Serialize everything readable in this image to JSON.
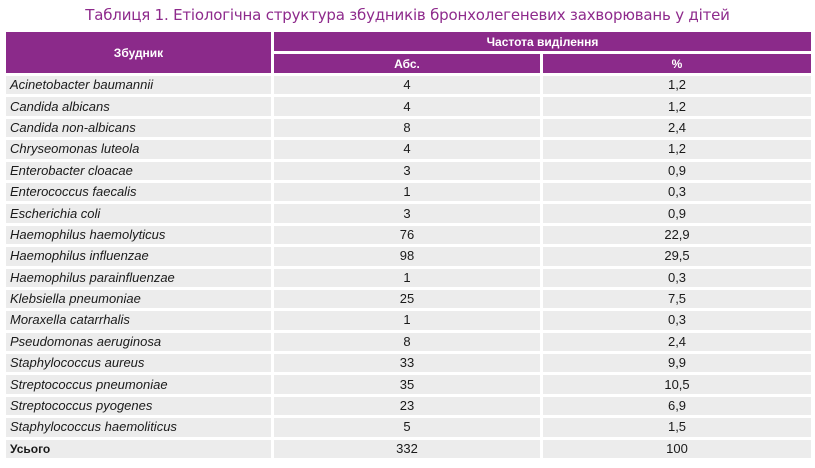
{
  "caption": "Таблиця 1. Етіологічна структура збудників бронхолегеневих захворювань у дітей",
  "headers": {
    "pathogen": "Збудник",
    "frequency": "Частота виділення",
    "abs": "Абс.",
    "percent": "%"
  },
  "rows": [
    {
      "name": "Acinetobacter baumannii",
      "abs": "4",
      "pct": "1,2"
    },
    {
      "name": "Candida albicans",
      "abs": "4",
      "pct": "1,2"
    },
    {
      "name": "Candida non-albicans",
      "abs": "8",
      "pct": "2,4"
    },
    {
      "name": "Chryseomonas luteola",
      "abs": "4",
      "pct": "1,2"
    },
    {
      "name": "Enterobacter cloacae",
      "abs": "3",
      "pct": "0,9"
    },
    {
      "name": "Enterococcus faecalis",
      "abs": "1",
      "pct": "0,3"
    },
    {
      "name": "Escherichia coli",
      "abs": "3",
      "pct": "0,9"
    },
    {
      "name": "Haemophilus haemolyticus",
      "abs": "76",
      "pct": "22,9"
    },
    {
      "name": "Haemophilus influenzae",
      "abs": "98",
      "pct": "29,5"
    },
    {
      "name": "Haemophilus parainfluenzae",
      "abs": "1",
      "pct": "0,3"
    },
    {
      "name": "Klebsiella pneumoniae",
      "abs": "25",
      "pct": "7,5"
    },
    {
      "name": "Moraxella catarrhalis",
      "abs": "1",
      "pct": "0,3"
    },
    {
      "name": "Pseudomonas aeruginosa",
      "abs": "8",
      "pct": "2,4"
    },
    {
      "name": "Staphylococcus aureus",
      "abs": "33",
      "pct": "9,9"
    },
    {
      "name": "Streptococcus pneumoniae",
      "abs": "35",
      "pct": "10,5"
    },
    {
      "name": "Streptococcus pyogenes",
      "abs": "23",
      "pct": "6,9"
    },
    {
      "name": "Staphylococcus haemoliticus",
      "abs": "5",
      "pct": "1,5"
    }
  ],
  "total": {
    "name": "Усього",
    "abs": "332",
    "pct": "100"
  },
  "colors": {
    "header": "#8b2a8a",
    "caption": "#8e2a8c",
    "row": "#ececec"
  }
}
